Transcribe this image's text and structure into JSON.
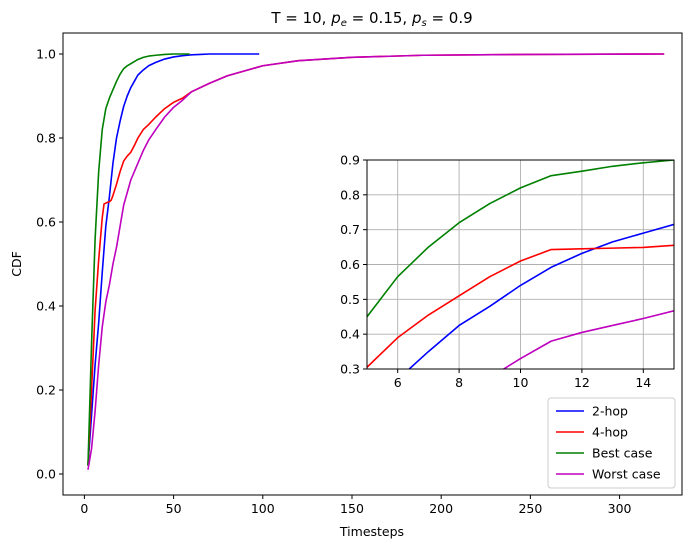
{
  "chart_data": [
    {
      "type": "line",
      "title": "T = 10, p_e = 0.15, p_s = 0.9",
      "title_parts": {
        "prefix": "T = 10, ",
        "pe_base": "p",
        "pe_sub": "e",
        "pe_value": " = 0.15, ",
        "ps_base": "p",
        "ps_sub": "s",
        "ps_value": " = 0.9"
      },
      "xlabel": "Timesteps",
      "ylabel": "CDF",
      "xlim": [
        -12,
        335
      ],
      "ylim": [
        -0.05,
        1.05
      ],
      "xticks": [
        0,
        50,
        100,
        150,
        200,
        250,
        300
      ],
      "xtick_labels": [
        "0",
        "50",
        "100",
        "150",
        "200",
        "250",
        "300"
      ],
      "yticks": [
        0.0,
        0.2,
        0.4,
        0.6,
        0.8,
        1.0
      ],
      "ytick_labels": [
        "0.0",
        "0.2",
        "0.4",
        "0.6",
        "0.8",
        "1.0"
      ],
      "grid": false,
      "legend_position": "lower-right",
      "series": [
        {
          "name": "2-hop",
          "color": "#0000ff",
          "x": [
            2,
            4,
            6,
            8,
            10,
            12,
            14,
            16,
            18,
            20,
            22,
            24,
            26,
            28,
            30,
            33,
            36,
            40,
            45,
            50,
            55,
            60,
            65,
            70,
            80,
            90,
            98
          ],
          "y": [
            0.02,
            0.14,
            0.26,
            0.36,
            0.48,
            0.59,
            0.66,
            0.74,
            0.8,
            0.84,
            0.875,
            0.9,
            0.92,
            0.935,
            0.95,
            0.962,
            0.972,
            0.98,
            0.988,
            0.993,
            0.996,
            0.998,
            0.999,
            1.0,
            1.0,
            1.0,
            1.0
          ]
        },
        {
          "name": "4-hop",
          "color": "#ff0000",
          "x": [
            2,
            4,
            6,
            8,
            10,
            11,
            12,
            13,
            14,
            15,
            16,
            18,
            20,
            22,
            24,
            26,
            28,
            30,
            33,
            36,
            40,
            45,
            50,
            55,
            60,
            70,
            80,
            100,
            120,
            150,
            190,
            250,
            325
          ],
          "y": [
            0.02,
            0.2,
            0.39,
            0.51,
            0.61,
            0.643,
            0.645,
            0.647,
            0.648,
            0.652,
            0.663,
            0.69,
            0.72,
            0.745,
            0.757,
            0.766,
            0.782,
            0.8,
            0.82,
            0.832,
            0.85,
            0.87,
            0.885,
            0.895,
            0.91,
            0.93,
            0.948,
            0.972,
            0.984,
            0.992,
            0.997,
            0.999,
            1.0
          ]
        },
        {
          "name": "Best case",
          "color": "#008000",
          "x": [
            2,
            4,
            6,
            8,
            10,
            12,
            14,
            16,
            18,
            20,
            22,
            24,
            26,
            28,
            30,
            33,
            36,
            40,
            45,
            50,
            55,
            59
          ],
          "y": [
            0.02,
            0.31,
            0.56,
            0.72,
            0.82,
            0.87,
            0.895,
            0.915,
            0.935,
            0.952,
            0.965,
            0.972,
            0.977,
            0.982,
            0.987,
            0.992,
            0.995,
            0.997,
            0.999,
            1.0,
            1.0,
            1.0
          ]
        },
        {
          "name": "Worst case",
          "color": "#bf00bf",
          "x": [
            2,
            4,
            6,
            8,
            10,
            11,
            12,
            14,
            16,
            18,
            20,
            22,
            24,
            26,
            28,
            30,
            33,
            36,
            40,
            45,
            50,
            55,
            60,
            70,
            80,
            100,
            120,
            150,
            190,
            250,
            325
          ],
          "y": [
            0.01,
            0.06,
            0.15,
            0.26,
            0.35,
            0.38,
            0.41,
            0.45,
            0.5,
            0.54,
            0.59,
            0.64,
            0.67,
            0.7,
            0.72,
            0.74,
            0.77,
            0.795,
            0.82,
            0.85,
            0.873,
            0.89,
            0.91,
            0.93,
            0.948,
            0.972,
            0.984,
            0.992,
            0.997,
            0.999,
            1.0
          ]
        }
      ]
    },
    {
      "type": "line",
      "title": "",
      "xlabel": "",
      "ylabel": "",
      "xlim": [
        5,
        15
      ],
      "ylim": [
        0.3,
        0.9
      ],
      "xticks": [
        6,
        8,
        10,
        12,
        14
      ],
      "xtick_labels": [
        "6",
        "8",
        "10",
        "12",
        "14"
      ],
      "yticks": [
        0.3,
        0.4,
        0.5,
        0.6,
        0.7,
        0.8,
        0.9
      ],
      "ytick_labels": [
        "0.3",
        "0.4",
        "0.5",
        "0.6",
        "0.7",
        "0.8",
        "0.9"
      ],
      "grid": true,
      "legend_position": "none",
      "series": [
        {
          "name": "2-hop",
          "color": "#0000ff",
          "x": [
            6,
            7,
            8,
            9,
            10,
            11,
            12,
            13,
            14,
            15
          ],
          "y": [
            0.27,
            0.35,
            0.425,
            0.48,
            0.54,
            0.592,
            0.632,
            0.665,
            0.69,
            0.715
          ]
        },
        {
          "name": "4-hop",
          "color": "#ff0000",
          "x": [
            5,
            6,
            7,
            8,
            9,
            10,
            11,
            12,
            13,
            14,
            15
          ],
          "y": [
            0.305,
            0.39,
            0.455,
            0.51,
            0.565,
            0.61,
            0.643,
            0.645,
            0.647,
            0.649,
            0.655
          ]
        },
        {
          "name": "Best case",
          "color": "#008000",
          "x": [
            5,
            6,
            7,
            8,
            9,
            10,
            11,
            12,
            13,
            14,
            15
          ],
          "y": [
            0.45,
            0.565,
            0.65,
            0.72,
            0.775,
            0.82,
            0.855,
            0.868,
            0.882,
            0.892,
            0.9
          ]
        },
        {
          "name": "Worst case",
          "color": "#bf00bf",
          "x": [
            9,
            10,
            11,
            12,
            13,
            14,
            15
          ],
          "y": [
            0.275,
            0.33,
            0.38,
            0.405,
            0.425,
            0.445,
            0.467
          ]
        }
      ]
    }
  ]
}
